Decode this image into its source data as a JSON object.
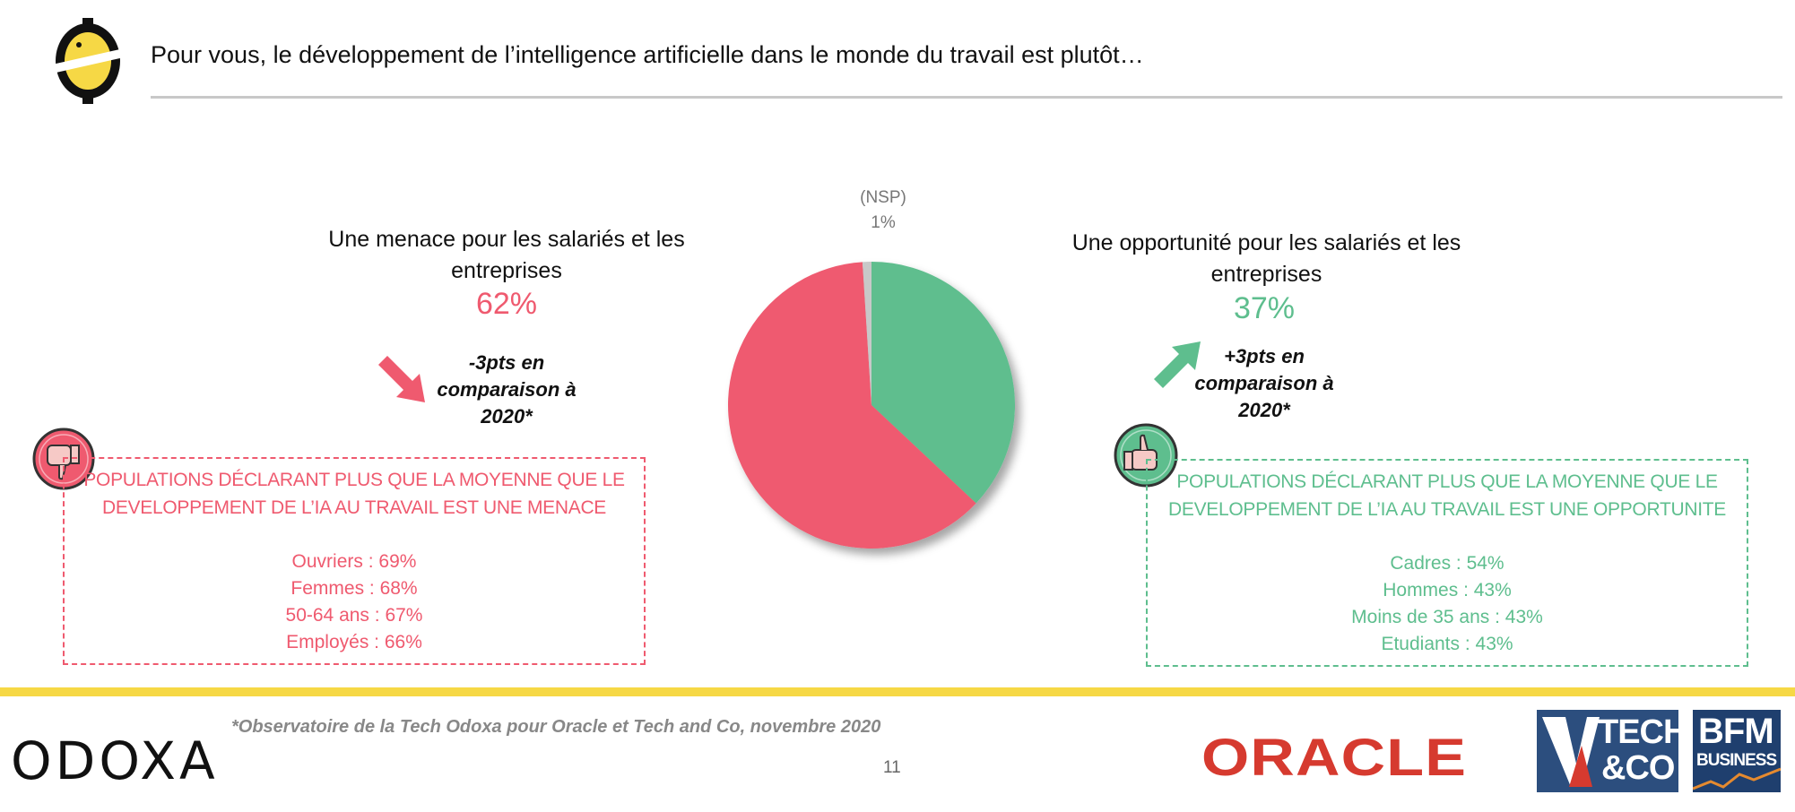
{
  "header": {
    "question": "Pour vous, le développement de l’intelligence artificielle dans le monde du travail est plutôt…"
  },
  "colors": {
    "menace": "#EF5A6F",
    "opportunite": "#5EBE8E",
    "nsp": "#C8C8C8",
    "band": "#F6D845"
  },
  "chart_data": {
    "type": "pie",
    "slices": [
      {
        "label": "Une opportunité pour les salariés et les entreprises",
        "value": 37,
        "color": "#5EBE8E"
      },
      {
        "label": "Une menace pour les salariés et les entreprises",
        "value": 62,
        "color": "#EF5A6F"
      },
      {
        "label": "(NSP)",
        "value": 1,
        "color": "#C8C8C8"
      }
    ]
  },
  "nsp": {
    "label": "(NSP)",
    "value": "1%"
  },
  "menace": {
    "title": "Une menace pour les salariés et les entreprises",
    "pct": "62%",
    "change": "-3pts en comparaison à 2020*",
    "box_heading": "POPULATIONS DÉCLARANT PLUS QUE LA MOYENNE QUE LE DEVELOPPEMENT DE L’IA AU TRAVAIL EST UNE MENACE",
    "items": [
      "Ouvriers : 69%",
      "Femmes : 68%",
      "50-64 ans : 67%",
      "Employés : 66%"
    ]
  },
  "opportunite": {
    "title": "Une opportunité pour les salariés et les entreprises",
    "pct": "37%",
    "change": "+3pts en comparaison à 2020*",
    "box_heading": "POPULATIONS DÉCLARANT PLUS QUE LA MOYENNE QUE LE DEVELOPPEMENT DE L’IA  AU TRAVAIL EST UNE OPPORTUNITE",
    "items": [
      "Cadres : 54%",
      "Hommes : 43%",
      "Moins de 35 ans : 43%",
      "Etudiants : 43%"
    ]
  },
  "footer": {
    "footnote": "*Observatoire de la Tech Odoxa pour Oracle et Tech and Co, novembre 2020",
    "page_number": "11",
    "odoxa_logo": "ODOXA",
    "oracle_logo": "ORACLE",
    "techco_logo_line1": "TECH",
    "techco_logo_line2": "&CO",
    "bfm_logo_line1": "BFM",
    "bfm_logo_line2": "BUSINESS"
  }
}
